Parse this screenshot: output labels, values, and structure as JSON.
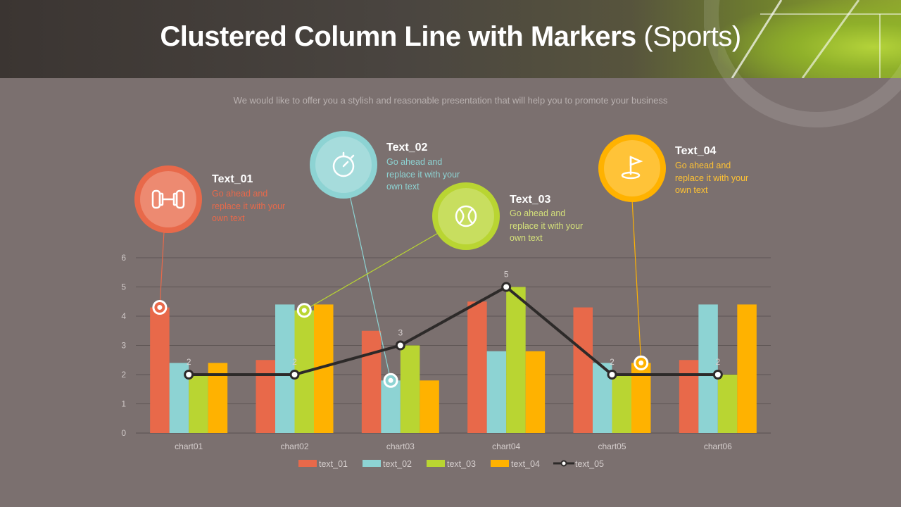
{
  "title_bold": "Clustered Column Line with Markers",
  "title_light": "(Sports)",
  "subtitle": "We would like to offer you a stylish and reasonable presentation that will help you to promote your business",
  "colors": {
    "text_01": "#e8694a",
    "text_02": "#8dd3d3",
    "text_03": "#b9d532",
    "text_04": "#ffb200",
    "text_05": "#2d2a29"
  },
  "callouts": [
    {
      "title": "Text_01",
      "body": "Go ahead and replace it with your own text",
      "icon": "dumbbell-icon",
      "color": "#e8694a"
    },
    {
      "title": "Text_02",
      "body": "Go ahead and replace it with your own text",
      "icon": "stopwatch-icon",
      "color": "#8dd3d3"
    },
    {
      "title": "Text_03",
      "body": "Go ahead and replace it with your own text",
      "icon": "tennis-ball-icon",
      "color": "#b9d532"
    },
    {
      "title": "Text_04",
      "body": "Go ahead and replace it with your own text",
      "icon": "golf-flag-icon",
      "color": "#ffb200"
    }
  ],
  "chart_data": {
    "type": "bar",
    "categories": [
      "chart01",
      "chart02",
      "chart03",
      "chart04",
      "chart05",
      "chart06"
    ],
    "series": [
      {
        "name": "text_01",
        "type": "bar",
        "values": [
          4.3,
          2.5,
          3.5,
          4.5,
          4.3,
          2.5
        ]
      },
      {
        "name": "text_02",
        "type": "bar",
        "values": [
          2.4,
          4.4,
          1.8,
          2.8,
          2.4,
          4.4
        ]
      },
      {
        "name": "text_03",
        "type": "bar",
        "values": [
          2.0,
          4.2,
          3.0,
          5.0,
          2.0,
          2.0
        ]
      },
      {
        "name": "text_04",
        "type": "bar",
        "values": [
          2.4,
          4.4,
          1.8,
          2.8,
          2.4,
          4.4
        ]
      },
      {
        "name": "text_05",
        "type": "line",
        "values": [
          2,
          2,
          3,
          5,
          2,
          2
        ],
        "data_labels": [
          "2",
          "2",
          "3",
          "5",
          "2",
          "2"
        ]
      }
    ],
    "yticks": [
      "0",
      "1",
      "2",
      "3",
      "4",
      "5",
      "6"
    ],
    "ylim": [
      0,
      6
    ],
    "grid": true,
    "legend": "bottom"
  }
}
